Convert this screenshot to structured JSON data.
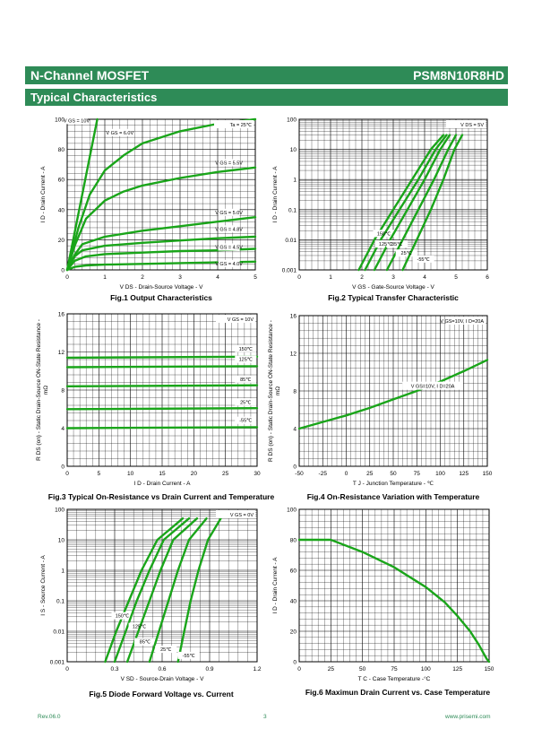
{
  "header": {
    "title": "N-Channel MOSFET",
    "part": "PSM8N10R8HD"
  },
  "section": {
    "title": "Typical Characteristics"
  },
  "footer": {
    "rev": "Rev.06.0",
    "page": "3",
    "site": "www.prisemi.com"
  },
  "colors": {
    "brand": "#2e8b57",
    "curve": "#1aa51a"
  },
  "chart_data": [
    {
      "id": "fig1",
      "type": "line",
      "caption": "Fig.1 Output Characteristics",
      "xlabel": "V_DS - Drain-Source Voltage - V",
      "ylabel": "I_D - Drain Current - A",
      "xlim": [
        0,
        5
      ],
      "ylim": [
        0,
        100
      ],
      "xticks": [
        "0",
        "1",
        "2",
        "3",
        "4",
        "5"
      ],
      "yticks": [
        "0",
        "20",
        "40",
        "60",
        "80",
        "100"
      ],
      "annotations": [
        "Ta = 25℃"
      ],
      "series": [
        {
          "name": "V_GS = 10V",
          "x": [
            0,
            0.2,
            0.4,
            0.6,
            0.8
          ],
          "y": [
            0,
            25,
            50,
            75,
            100
          ]
        },
        {
          "name": "V_GS = 6.0V",
          "x": [
            0,
            0.3,
            0.6,
            1,
            1.5,
            2,
            3,
            4,
            5
          ],
          "y": [
            0,
            28,
            50,
            66,
            76,
            84,
            92,
            97,
            100
          ]
        },
        {
          "name": "V_GS = 5.5V",
          "x": [
            0,
            0.2,
            0.5,
            1,
            1.5,
            2,
            3,
            4,
            5
          ],
          "y": [
            0,
            16,
            34,
            46,
            52,
            56,
            61,
            65,
            68
          ]
        },
        {
          "name": "V_GS = 5.0V",
          "x": [
            0,
            0.2,
            0.4,
            1,
            2,
            3,
            4,
            5
          ],
          "y": [
            0,
            10,
            17,
            22,
            26,
            29,
            32,
            35
          ]
        },
        {
          "name": "V_GS = 4.8V",
          "x": [
            0,
            0.2,
            0.4,
            1,
            2,
            3,
            4,
            5
          ],
          "y": [
            0,
            9,
            13,
            16,
            18,
            19.5,
            21,
            22
          ]
        },
        {
          "name": "V_GS = 4.5V",
          "x": [
            0,
            0.2,
            0.5,
            1,
            2,
            3,
            4,
            5
          ],
          "y": [
            0,
            6,
            9,
            10.5,
            11.5,
            12.5,
            13,
            14
          ]
        },
        {
          "name": "V_GS = 4.0V",
          "x": [
            0,
            0.2,
            0.5,
            1,
            2,
            3,
            4,
            5
          ],
          "y": [
            0,
            2,
            3,
            3.5,
            4,
            4.5,
            5,
            5.5
          ]
        }
      ]
    },
    {
      "id": "fig2",
      "type": "line",
      "caption": "Fig.2 Typical Transfer Characteristic",
      "xlabel": "V_GS - Gate-Source Voltage - V",
      "ylabel": "I_D - Drain Current - A",
      "xlim": [
        0,
        6
      ],
      "ylim": [
        0.001,
        100
      ],
      "yscale": "log",
      "xticks": [
        "0",
        "1",
        "2",
        "3",
        "4",
        "5",
        "6"
      ],
      "yticks": [
        "0.001",
        "0.01",
        "0.1",
        "1",
        "10",
        "100"
      ],
      "annotations": [
        "V_DS = 5V"
      ],
      "series": [
        {
          "name": "150℃",
          "x": [
            1.9,
            2.4,
            3,
            3.6,
            4.2,
            4.6
          ],
          "y": [
            0.001,
            0.01,
            0.1,
            1,
            10,
            30
          ]
        },
        {
          "name": "125℃",
          "x": [
            2.1,
            2.6,
            3.2,
            3.8,
            4.35,
            4.7
          ],
          "y": [
            0.001,
            0.01,
            0.1,
            1,
            10,
            30
          ]
        },
        {
          "name": "85℃",
          "x": [
            2.4,
            2.9,
            3.45,
            4,
            4.5,
            4.8
          ],
          "y": [
            0.001,
            0.01,
            0.1,
            1,
            10,
            30
          ]
        },
        {
          "name": "25℃",
          "x": [
            2.8,
            3.3,
            3.8,
            4.3,
            4.75,
            5
          ],
          "y": [
            0.001,
            0.01,
            0.1,
            1,
            10,
            30
          ]
        },
        {
          "name": "-55℃",
          "x": [
            3.3,
            3.75,
            4.2,
            4.6,
            4.95,
            5.2
          ],
          "y": [
            0.001,
            0.01,
            0.1,
            1,
            10,
            30
          ]
        }
      ]
    },
    {
      "id": "fig3",
      "type": "line",
      "caption": "Fig.3 Typical On-Resistance  vs Drain Current and Temperature",
      "xlabel": "I_D - Drain Current - A",
      "ylabel": "R_DS (on) - Static Drain-Source ON-State Resistance - mΩ",
      "xlim": [
        0,
        30
      ],
      "ylim": [
        0,
        16
      ],
      "xticks": [
        "0",
        "5",
        "10",
        "15",
        "20",
        "25",
        "30"
      ],
      "yticks": [
        "0",
        "4",
        "8",
        "12",
        "16"
      ],
      "annotations": [
        "V_GS = 10V"
      ],
      "series": [
        {
          "name": "150℃",
          "x": [
            0,
            30
          ],
          "y": [
            11.4,
            11.5
          ]
        },
        {
          "name": "125℃",
          "x": [
            0,
            30
          ],
          "y": [
            10.4,
            10.5
          ]
        },
        {
          "name": "85℃",
          "x": [
            0,
            30
          ],
          "y": [
            8.4,
            8.5
          ]
        },
        {
          "name": "25℃",
          "x": [
            0,
            30
          ],
          "y": [
            6.0,
            6.1
          ]
        },
        {
          "name": "-55℃",
          "x": [
            0,
            30
          ],
          "y": [
            4.0,
            4.1
          ]
        }
      ]
    },
    {
      "id": "fig4",
      "type": "line",
      "caption": "Fig.4 On-Resistance Variation with Temperature",
      "xlabel": "T_J - Junction Temperature - ℃",
      "ylabel": "R_DS (on) - Static Drain-Source ON-State Resistance - mΩ",
      "xlim": [
        -50,
        150
      ],
      "ylim": [
        0,
        16
      ],
      "xticks": [
        "-50",
        "-25",
        "0",
        "25",
        "50",
        "75",
        "100",
        "125",
        "150"
      ],
      "yticks": [
        "0",
        "4",
        "8",
        "12",
        "16"
      ],
      "annotations": [
        "V_GS=10V, I_D=20A"
      ],
      "series": [
        {
          "name": "",
          "x": [
            -50,
            -25,
            0,
            25,
            50,
            75,
            100,
            125,
            150
          ],
          "y": [
            4.0,
            4.7,
            5.4,
            6.2,
            7.1,
            8.0,
            9.0,
            10.1,
            11.3
          ]
        }
      ]
    },
    {
      "id": "fig5",
      "type": "line",
      "caption": "Fig.5 Diode Forward Voltage vs. Current",
      "xlabel": "V_SD - Source-Drain Voltage - V",
      "ylabel": "I_S - Source Current - A",
      "xlim": [
        0,
        1.2
      ],
      "ylim": [
        0.001,
        100
      ],
      "yscale": "log",
      "xticks": [
        "0",
        "0.3",
        "0.6",
        "0.9",
        "1.2"
      ],
      "yticks": [
        "0.001",
        "0.01",
        "0.1",
        "1",
        "10",
        "100"
      ],
      "annotations": [
        "V_GS = 0V"
      ],
      "series": [
        {
          "name": "150℃",
          "x": [
            0.24,
            0.31,
            0.39,
            0.47,
            0.57,
            0.73
          ],
          "y": [
            0.001,
            0.01,
            0.1,
            1,
            10,
            50
          ]
        },
        {
          "name": "125℃",
          "x": [
            0.3,
            0.37,
            0.44,
            0.52,
            0.61,
            0.77
          ],
          "y": [
            0.001,
            0.01,
            0.1,
            1,
            10,
            50
          ]
        },
        {
          "name": "85℃",
          "x": [
            0.38,
            0.45,
            0.52,
            0.59,
            0.67,
            0.82
          ],
          "y": [
            0.001,
            0.01,
            0.1,
            1,
            10,
            50
          ]
        },
        {
          "name": "25℃",
          "x": [
            0.52,
            0.58,
            0.64,
            0.7,
            0.77,
            0.88
          ],
          "y": [
            0.001,
            0.01,
            0.1,
            1,
            10,
            50
          ]
        },
        {
          "name": "-55℃",
          "x": [
            0.7,
            0.74,
            0.78,
            0.83,
            0.89,
            0.97
          ],
          "y": [
            0.001,
            0.01,
            0.1,
            1,
            10,
            50
          ]
        }
      ]
    },
    {
      "id": "fig6",
      "type": "line",
      "caption": "Fig.6 Maximun Drain Current vs. Case Temperature",
      "xlabel": "T_C - Case Temperature -°C",
      "ylabel": "I_D - Drain Current - A",
      "xlim": [
        0,
        150
      ],
      "ylim": [
        0,
        100
      ],
      "xticks": [
        "0",
        "25",
        "50",
        "75",
        "100",
        "125",
        "150"
      ],
      "yticks": [
        "0",
        "20",
        "40",
        "60",
        "80",
        "100"
      ],
      "series": [
        {
          "name": "",
          "x": [
            0,
            25,
            50,
            75,
            100,
            115,
            125,
            135,
            142,
            146,
            148,
            150
          ],
          "y": [
            80,
            80,
            72,
            62,
            49,
            39,
            30,
            20,
            11,
            5,
            2,
            0
          ]
        }
      ]
    }
  ]
}
